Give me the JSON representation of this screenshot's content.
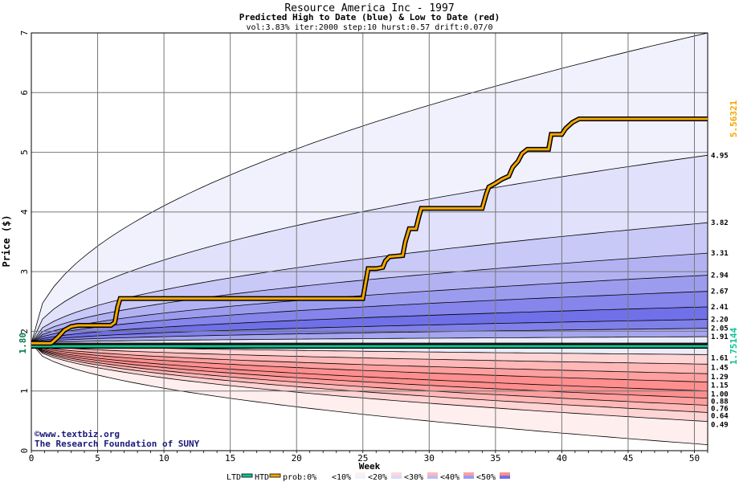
{
  "chart_data": {
    "type": "area",
    "title": "Resource America Inc - 1997",
    "subtitle": "Predicted High to Date (blue) &  Low to Date (red)",
    "params": "vol:3.83% iter:2000 step:10 hurst:0.57 drift:0.07/0",
    "xlabel": "Week",
    "ylabel": "Price ($)",
    "xlim": [
      0,
      51
    ],
    "ylim": [
      0,
      7
    ],
    "x_ticks": [
      0,
      5,
      10,
      15,
      20,
      25,
      30,
      35,
      40,
      45,
      50
    ],
    "y_ticks": [
      0,
      1,
      2,
      3,
      4,
      5,
      6,
      7
    ],
    "grid": true,
    "start_price": 1.8,
    "start_price_label": "1.80",
    "htd_label": "5.56321",
    "ltd_label": "1.75144",
    "high_band_final": [
      7.0,
      4.95,
      3.82,
      3.31,
      2.94,
      2.67,
      2.41,
      2.2,
      2.05,
      1.91
    ],
    "high_band_labels": [
      "4.95",
      "3.82",
      "3.31",
      "2.94",
      "2.67",
      "2.41",
      "2.20",
      "2.05",
      "1.91"
    ],
    "low_band_final": [
      1.61,
      1.45,
      1.29,
      1.15,
      1.0,
      0.88,
      0.76,
      0.64,
      0.49,
      0.1
    ],
    "low_band_labels": [
      "1.61",
      "1.45",
      "1.29",
      "1.15",
      "1.00",
      "0.88",
      "0.76",
      "0.64",
      "0.49"
    ],
    "htd_series": [
      [
        0,
        1.8
      ],
      [
        1.5,
        1.8
      ],
      [
        2,
        1.9
      ],
      [
        2.5,
        2.02
      ],
      [
        3,
        2.08
      ],
      [
        3.5,
        2.1
      ],
      [
        6,
        2.1
      ],
      [
        6.3,
        2.15
      ],
      [
        6.5,
        2.4
      ],
      [
        6.7,
        2.55
      ],
      [
        25,
        2.55
      ],
      [
        25.2,
        2.8
      ],
      [
        25.4,
        3.05
      ],
      [
        26,
        3.05
      ],
      [
        26.5,
        3.07
      ],
      [
        26.7,
        3.18
      ],
      [
        27,
        3.25
      ],
      [
        28,
        3.27
      ],
      [
        28.2,
        3.5
      ],
      [
        28.5,
        3.72
      ],
      [
        29,
        3.72
      ],
      [
        29.2,
        3.9
      ],
      [
        29.4,
        4.06
      ],
      [
        34,
        4.06
      ],
      [
        34.3,
        4.3
      ],
      [
        34.5,
        4.42
      ],
      [
        35,
        4.48
      ],
      [
        35.5,
        4.55
      ],
      [
        36,
        4.6
      ],
      [
        36.3,
        4.75
      ],
      [
        36.7,
        4.85
      ],
      [
        37,
        4.98
      ],
      [
        37.4,
        5.05
      ],
      [
        39,
        5.05
      ],
      [
        39.2,
        5.3
      ],
      [
        40,
        5.3
      ],
      [
        40.3,
        5.4
      ],
      [
        40.8,
        5.5
      ],
      [
        41.3,
        5.56
      ],
      [
        51,
        5.56
      ]
    ],
    "ltd_value": 1.75,
    "legend": [
      "LTD",
      "HTD",
      "prob:0%",
      "<10%",
      "<20%",
      "<30%",
      "<40%",
      "<50%"
    ],
    "credits": [
      "©www.textbiz.org",
      "The Research Foundation of SUNY"
    ]
  },
  "colors": {
    "htd": "#f5a700",
    "ltd": "#11c492",
    "start_label": "#007a4a",
    "high_bands": [
      "#f1f1fd",
      "#e1e1fb",
      "#c9c9f7",
      "#b2b2f3",
      "#9c9cef",
      "#8585eb",
      "#7070e8",
      "#8080ea",
      "#a5a5f0"
    ],
    "low_bands": [
      "#ffd4d4",
      "#ffb8b8",
      "#ffa0a0",
      "#ff8f8f",
      "#ff8f8f",
      "#ffa0a0",
      "#ffb8b8",
      "#ffd4d4",
      "#ffeeee"
    ]
  }
}
